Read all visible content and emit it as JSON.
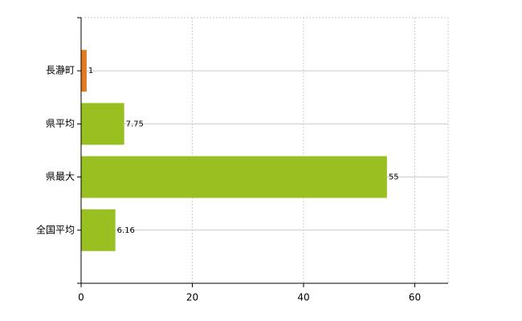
{
  "chart_data": {
    "type": "hbar",
    "categories": [
      "長瀞町",
      "県平均",
      "県最大",
      "全国平均"
    ],
    "values": [
      1,
      7.75,
      55,
      6.16
    ],
    "colors": [
      "#e07b20",
      "#99c020",
      "#99c020",
      "#99c020"
    ],
    "xlim": [
      0,
      66
    ],
    "xticks": [
      0,
      20,
      40,
      60
    ],
    "grid": true
  }
}
